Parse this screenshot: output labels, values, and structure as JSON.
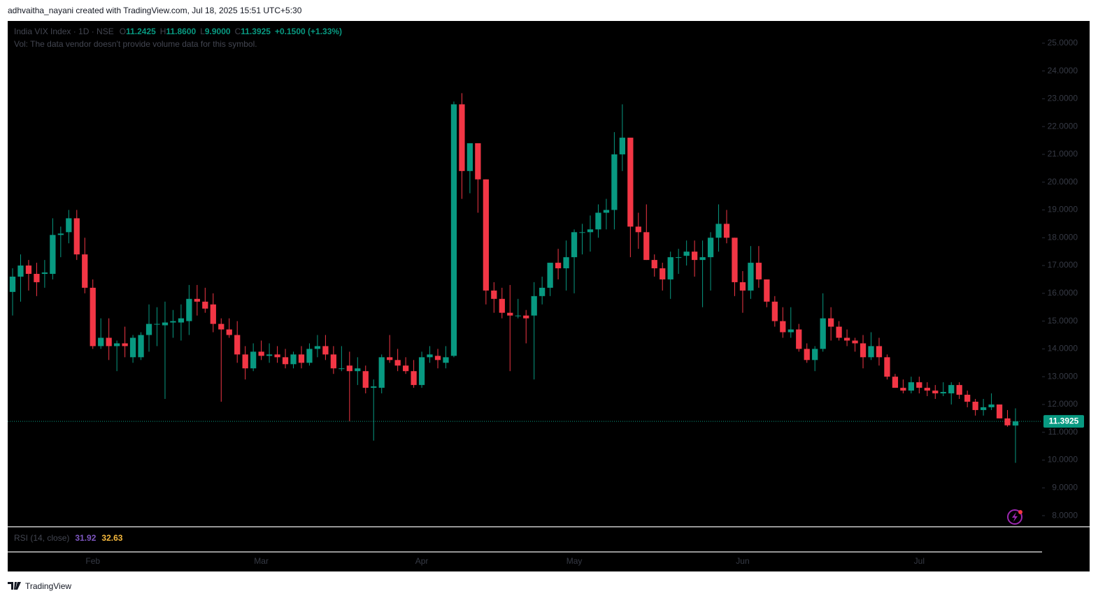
{
  "chart_data": {
    "type": "candlestick",
    "attribution": "adhvaitha_nayani created with TradingView.com, Jul 18, 2025 15:51 UTC+5:30",
    "symbol": "India VIX Index · 1D · NSE",
    "legend": [
      {
        "label": "O",
        "value": "11.2425"
      },
      {
        "label": "H",
        "value": "11.8600"
      },
      {
        "label": "L",
        "value": "9.9000"
      },
      {
        "label": "C",
        "value": "11.3925"
      }
    ],
    "change": "+0.1500 (+1.33%)",
    "volume_note": "Vol: The data vendor doesn't provide volume data for this symbol.",
    "rsi": {
      "label": "RSI (14, close)",
      "values": [
        31.92,
        32.63
      ],
      "colors": [
        "#7e57c2",
        "#f5b83d"
      ]
    },
    "brand": "TradingView",
    "up_color": "#089981",
    "down_color": "#f23645",
    "last_price": {
      "value": 11.3925,
      "label": "11.3925"
    },
    "ylim": [
      7.6,
      25.8
    ],
    "yticks": [
      {
        "value": 8,
        "label": "8.0000"
      },
      {
        "value": 9,
        "label": "9.0000"
      },
      {
        "value": 10,
        "label": "10.0000"
      },
      {
        "value": 11,
        "label": "11.0000"
      },
      {
        "value": 12,
        "label": "12.0000"
      },
      {
        "value": 13,
        "label": "13.0000"
      },
      {
        "value": 14,
        "label": "14.0000"
      },
      {
        "value": 15,
        "label": "15.0000"
      },
      {
        "value": 16,
        "label": "16.0000"
      },
      {
        "value": 17,
        "label": "17.0000"
      },
      {
        "value": 18,
        "label": "18.0000"
      },
      {
        "value": 19,
        "label": "19.0000"
      },
      {
        "value": 20,
        "label": "20.0000"
      },
      {
        "value": 21,
        "label": "21.0000"
      },
      {
        "value": 22,
        "label": "22.0000"
      },
      {
        "value": 23,
        "label": "23.0000"
      },
      {
        "value": 24,
        "label": "24.0000"
      },
      {
        "value": 25,
        "label": "25.0000"
      }
    ],
    "categories": [
      null,
      null,
      null,
      null,
      null,
      null,
      null,
      null,
      null,
      null,
      "Feb",
      null,
      null,
      null,
      null,
      null,
      null,
      null,
      null,
      null,
      null,
      null,
      null,
      null,
      null,
      null,
      null,
      null,
      null,
      null,
      null,
      "Mar",
      null,
      null,
      null,
      null,
      null,
      null,
      null,
      null,
      null,
      null,
      null,
      null,
      null,
      null,
      null,
      null,
      null,
      null,
      null,
      "Apr",
      null,
      null,
      null,
      null,
      null,
      null,
      null,
      null,
      null,
      null,
      null,
      null,
      null,
      null,
      null,
      null,
      null,
      null,
      "May",
      null,
      null,
      null,
      null,
      null,
      null,
      null,
      null,
      null,
      null,
      null,
      null,
      null,
      null,
      null,
      null,
      null,
      null,
      null,
      null,
      "Jun",
      null,
      null,
      null,
      null,
      null,
      null,
      null,
      null,
      null,
      null,
      null,
      null,
      null,
      null,
      null,
      null,
      null,
      null,
      null,
      null,
      null,
      "Jul",
      null,
      null,
      null,
      null,
      null,
      null,
      null,
      null,
      null,
      null,
      null,
      null
    ],
    "open": [
      16.05,
      16.6,
      17.0,
      16.7,
      16.7,
      16.7,
      18.1,
      18.2,
      18.7,
      17.4,
      16.2,
      14.1,
      14.4,
      14.1,
      14.2,
      13.7,
      13.7,
      14.5,
      14.9,
      14.85,
      14.95,
      14.95,
      15.0,
      15.8,
      15.7,
      15.6,
      14.9,
      14.7,
      14.5,
      13.8,
      13.3,
      13.9,
      13.75,
      13.8,
      13.7,
      13.45,
      13.8,
      13.5,
      14.0,
      14.1,
      13.8,
      13.3,
      13.4,
      13.2,
      13.2,
      12.6,
      12.6,
      13.7,
      13.6,
      13.4,
      13.2,
      12.7,
      13.7,
      13.75,
      13.5,
      13.75,
      22.8,
      20.4,
      21.4,
      20.1,
      16.1,
      15.8,
      15.3,
      15.2,
      15.2,
      15.2,
      15.9,
      16.2,
      17.1,
      16.9,
      17.3,
      18.2,
      18.2,
      18.3,
      18.9,
      19.0,
      21.0,
      21.6,
      18.4,
      18.2,
      17.2,
      16.9,
      16.5,
      17.3,
      17.35,
      17.5,
      17.2,
      17.3,
      18.0,
      18.5,
      18.0,
      16.4,
      16.1,
      17.1,
      16.5,
      15.7,
      15.0,
      14.6,
      14.7,
      14.0,
      13.6,
      14.0,
      15.1,
      14.8,
      14.4,
      14.3,
      14.2,
      13.7,
      14.1,
      13.7,
      13.0,
      12.6,
      12.5,
      12.8,
      12.6,
      12.5,
      12.4,
      12.4,
      12.7,
      12.35,
      12.1,
      11.8,
      11.9,
      12.0,
      11.5,
      11.2425
    ],
    "high": [
      16.9,
      17.4,
      17.2,
      17.1,
      17.2,
      18.7,
      18.4,
      19.0,
      19.0,
      18.0,
      16.5,
      15.1,
      15.1,
      14.3,
      14.8,
      14.5,
      14.6,
      15.6,
      15.5,
      15.7,
      15.4,
      15.6,
      16.3,
      16.3,
      16.2,
      16.0,
      15.1,
      15.1,
      15.0,
      14.1,
      14.2,
      14.3,
      14.2,
      14.1,
      14.0,
      13.9,
      14.1,
      14.2,
      14.5,
      14.5,
      14.1,
      14.1,
      13.9,
      13.7,
      13.4,
      12.9,
      13.8,
      14.5,
      14.0,
      13.7,
      13.6,
      13.9,
      14.1,
      14.0,
      14.1,
      22.9,
      23.2,
      21.4,
      21.4,
      20.1,
      16.4,
      16.2,
      16.3,
      15.8,
      15.4,
      16.4,
      16.6,
      17.1,
      17.6,
      17.9,
      18.3,
      18.5,
      18.8,
      19.2,
      19.4,
      21.8,
      22.8,
      21.6,
      18.9,
      19.2,
      17.4,
      17.1,
      17.5,
      17.6,
      17.9,
      17.9,
      17.9,
      18.2,
      19.2,
      19.0,
      18.0,
      16.8,
      17.7,
      17.7,
      16.5,
      15.9,
      15.5,
      15.5,
      14.9,
      14.2,
      14.1,
      16.0,
      15.5,
      15.0,
      14.7,
      14.4,
      14.5,
      14.6,
      14.4,
      13.8,
      13.1,
      12.9,
      13.0,
      13.0,
      12.8,
      12.7,
      12.8,
      12.8,
      12.8,
      12.5,
      12.2,
      12.2,
      12.4,
      12.0,
      11.8,
      11.86
    ],
    "low": [
      15.2,
      15.7,
      16.1,
      15.9,
      16.2,
      16.5,
      17.3,
      17.8,
      17.2,
      16.0,
      14.0,
      14.0,
      13.6,
      13.2,
      13.7,
      13.5,
      13.6,
      13.9,
      14.1,
      12.2,
      14.4,
      14.3,
      14.5,
      15.2,
      15.3,
      14.6,
      12.1,
      14.4,
      13.5,
      12.9,
      13.2,
      13.6,
      13.5,
      13.5,
      13.3,
      13.3,
      13.3,
      13.4,
      13.7,
      13.6,
      13.1,
      13.2,
      11.4,
      12.7,
      12.4,
      10.7,
      12.4,
      13.5,
      13.2,
      13.1,
      12.6,
      12.6,
      13.5,
      13.3,
      13.3,
      13.7,
      19.4,
      19.6,
      18.9,
      15.6,
      15.3,
      15.1,
      13.2,
      15.1,
      14.2,
      12.9,
      15.6,
      15.9,
      16.5,
      16.1,
      16.0,
      17.4,
      17.5,
      18.0,
      18.3,
      18.3,
      20.4,
      17.3,
      17.6,
      17.2,
      16.6,
      16.1,
      15.8,
      16.7,
      17.0,
      16.6,
      15.5,
      16.1,
      17.5,
      17.8,
      15.9,
      15.3,
      15.8,
      16.2,
      15.5,
      14.8,
      14.4,
      14.4,
      13.9,
      13.5,
      13.2,
      13.9,
      14.3,
      14.3,
      14.1,
      13.9,
      13.3,
      13.6,
      13.4,
      12.9,
      12.6,
      12.4,
      12.4,
      12.4,
      12.3,
      12.2,
      12.3,
      12.0,
      12.2,
      11.9,
      11.6,
      11.6,
      11.8,
      11.5,
      11.2,
      9.9
    ],
    "close": [
      16.6,
      17.0,
      16.7,
      16.4,
      16.75,
      18.1,
      18.15,
      18.7,
      17.4,
      16.2,
      14.1,
      14.4,
      14.1,
      14.2,
      14.1,
      14.4,
      14.5,
      14.9,
      14.9,
      14.95,
      15.0,
      15.1,
      15.8,
      15.7,
      15.45,
      14.9,
      14.7,
      14.5,
      13.8,
      13.3,
      13.9,
      13.75,
      13.8,
      13.7,
      13.45,
      13.8,
      13.5,
      14.0,
      14.1,
      13.8,
      13.3,
      13.3,
      13.2,
      13.3,
      12.6,
      12.65,
      13.7,
      13.6,
      13.4,
      13.2,
      12.7,
      13.7,
      13.8,
      13.6,
      13.7,
      22.8,
      20.4,
      21.4,
      20.1,
      16.1,
      15.8,
      15.3,
      15.2,
      15.2,
      15.1,
      15.9,
      16.2,
      17.1,
      16.9,
      17.3,
      18.2,
      18.2,
      18.3,
      18.9,
      19.0,
      21.0,
      21.6,
      18.4,
      18.2,
      17.2,
      16.9,
      16.5,
      17.3,
      17.3,
      17.5,
      17.2,
      17.3,
      18.0,
      18.5,
      18.0,
      16.4,
      16.1,
      17.1,
      16.5,
      15.7,
      15.0,
      14.6,
      14.7,
      14.0,
      13.6,
      14.0,
      15.1,
      14.8,
      14.4,
      14.3,
      14.2,
      13.7,
      14.1,
      13.7,
      13.0,
      12.6,
      12.5,
      12.8,
      12.6,
      12.5,
      12.4,
      12.45,
      12.7,
      12.35,
      12.1,
      11.8,
      11.9,
      12.0,
      11.5,
      11.25,
      11.3925
    ]
  }
}
